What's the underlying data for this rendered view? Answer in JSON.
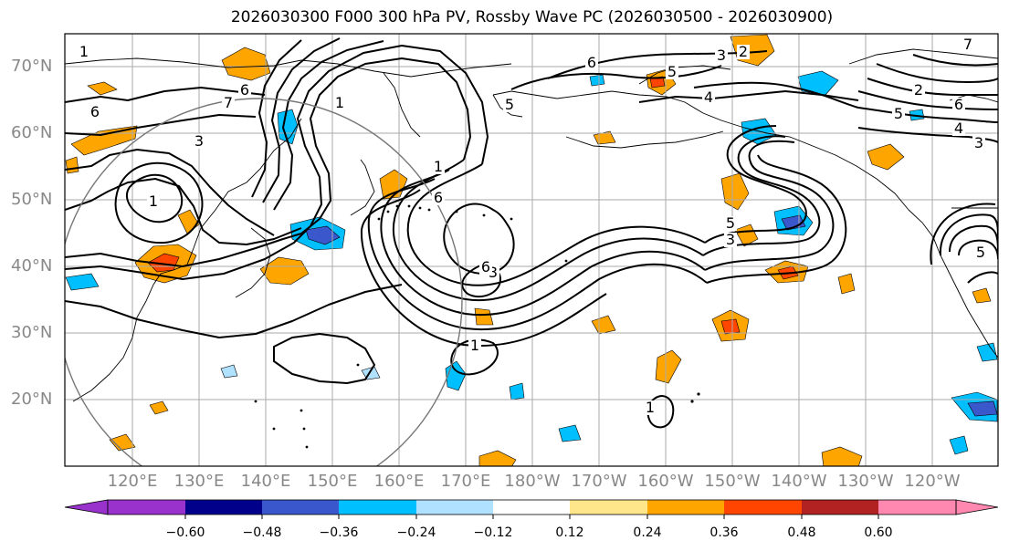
{
  "title": "2026030300 F000 300 hPa PV, Rossby Wave PC (2026030500 - 2026030900)",
  "lat_labels": [
    "70°N",
    "60°N",
    "50°N",
    "40°N",
    "30°N",
    "20°N"
  ],
  "lon_labels": [
    "120°E",
    "130°E",
    "140°E",
    "150°E",
    "160°E",
    "170°E",
    "180°W",
    "170°W",
    "160°W",
    "150°W",
    "140°W",
    "130°W",
    "120°W"
  ],
  "colorbar": {
    "ticks": [
      "−0.60",
      "−0.48",
      "−0.36",
      "−0.24",
      "−0.12",
      "0.12",
      "0.24",
      "0.36",
      "0.48",
      "0.60"
    ],
    "colors": [
      "#9932cc",
      "#00008b",
      "#3a57cc",
      "#00bfff",
      "#b0e2ff",
      "#ffffff",
      "#ffe68a",
      "#ffa500",
      "#ff4500",
      "#b22222",
      "#ff88b0"
    ]
  },
  "contour_labels": [
    "1",
    "1",
    "1",
    "1",
    "1",
    "1",
    "2",
    "2",
    "3",
    "3",
    "3",
    "3",
    "3",
    "4",
    "4",
    "5",
    "5",
    "5",
    "5",
    "5",
    "6",
    "6",
    "6",
    "6",
    "6",
    "6",
    "7",
    "7"
  ]
}
